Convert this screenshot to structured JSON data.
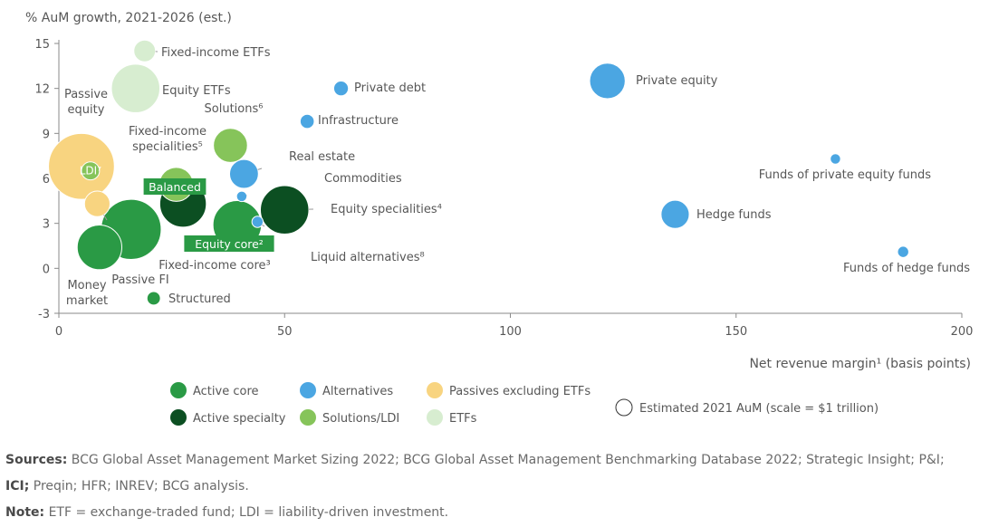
{
  "chart_data": {
    "type": "scatter",
    "title": "",
    "ylabel": "% AuM growth, 2021-2026 (est.)",
    "xlabel": "Net revenue margin¹ (basis points)",
    "xlim": [
      0,
      200
    ],
    "ylim": [
      -3,
      15
    ],
    "x_ticks": [
      "0",
      "50",
      "100",
      "150",
      "200"
    ],
    "y_ticks": [
      "-3",
      "0",
      "3",
      "6",
      "9",
      "12",
      "15"
    ],
    "grid": false,
    "legend_position": "bottom",
    "categories": [
      {
        "key": "active_core",
        "name": "Active core",
        "color": "#2a9a45"
      },
      {
        "key": "active_specialty",
        "name": "Active specialty",
        "color": "#0c4f22"
      },
      {
        "key": "alternatives",
        "name": "Alternatives",
        "color": "#4ba6e2"
      },
      {
        "key": "solutions_ldi",
        "name": "Solutions/LDI",
        "color": "#86c45a"
      },
      {
        "key": "passives_excl_etfs",
        "name": "Passives excluding ETFs",
        "color": "#f8d480"
      },
      {
        "key": "etfs",
        "name": "ETFs",
        "color": "#d7edd0"
      }
    ],
    "size_legend": "Estimated 2021 AuM (scale = $1 trillion)",
    "points": [
      {
        "label": "Fixed-income ETFs",
        "category": "etfs",
        "x": 19,
        "y": 14.5,
        "aum": 1.3
      },
      {
        "label": "Equity ETFs",
        "category": "etfs",
        "x": 17,
        "y": 12,
        "aum": 6.5
      },
      {
        "label": "Passive equity",
        "category": "passives_excl_etfs",
        "x": 5,
        "y": 6.8,
        "aum": 12
      },
      {
        "label": "LDI⁷",
        "category": "solutions_ldi",
        "x": 7,
        "y": 6.5,
        "aum": 0.9
      },
      {
        "label": "Fixed-income specialities⁵",
        "category": "solutions_ldi",
        "x": 26,
        "y": 5.6,
        "aum": 3.2
      },
      {
        "label": "Balanced",
        "category": "active_specialty",
        "x": 27.5,
        "y": 4.3,
        "aum": 6
      },
      {
        "label": "Solutions⁶",
        "category": "solutions_ldi",
        "x": 38,
        "y": 8.2,
        "aum": 3.2
      },
      {
        "label": "Real estate",
        "category": "alternatives",
        "x": 41,
        "y": 6.3,
        "aum": 2.3
      },
      {
        "label": "Commodities",
        "category": "alternatives",
        "x": 40.5,
        "y": 4.8,
        "aum": 0.3
      },
      {
        "label": "Equity specialities⁴",
        "category": "active_specialty",
        "x": 50,
        "y": 3.9,
        "aum": 6.5
      },
      {
        "label": "Liquid alternatives⁸",
        "category": "alternatives",
        "x": 44,
        "y": 3.1,
        "aum": 0.35
      },
      {
        "label": "Equity core²",
        "category": "active_core",
        "x": 39.5,
        "y": 2.9,
        "aum": 6.5
      },
      {
        "label": "Fixed-income core³",
        "category": "active_core",
        "x": 16,
        "y": 2.6,
        "aum": 10
      },
      {
        "label": "Passive FI",
        "category": "passives_excl_etfs",
        "x": 8.5,
        "y": 4.3,
        "aum": 1.8
      },
      {
        "label": "Money market",
        "category": "active_core",
        "x": 9,
        "y": 1.4,
        "aum": 5.5
      },
      {
        "label": "Structured",
        "category": "active_core",
        "x": 21,
        "y": -2,
        "aum": 0.5
      },
      {
        "label": "Private debt",
        "category": "alternatives",
        "x": 62.5,
        "y": 12,
        "aum": 0.6
      },
      {
        "label": "Infrastructure",
        "category": "alternatives",
        "x": 55,
        "y": 9.8,
        "aum": 0.55
      },
      {
        "label": "Private equity",
        "category": "alternatives",
        "x": 121.5,
        "y": 12.5,
        "aum": 3.5
      },
      {
        "label": "Funds of private equity funds",
        "category": "alternatives",
        "x": 172,
        "y": 7.3,
        "aum": 0.3
      },
      {
        "label": "Hedge funds",
        "category": "alternatives",
        "x": 136.5,
        "y": 3.6,
        "aum": 2.2
      },
      {
        "label": "Funds of hedge funds",
        "category": "alternatives",
        "x": 187,
        "y": 1.1,
        "aum": 0.35
      }
    ]
  },
  "footnotes": {
    "sources_label": "Sources:",
    "sources_text_1": " BCG Global Asset Management Market Sizing 2022; BCG Global Asset Management Benchmarking Database 2022; Strategic Insight; P&I;",
    "ici_label": "ICI;",
    "sources_text_2": " Preqin; HFR; INREV; BCG analysis.",
    "note_label": "Note:",
    "note_text": " ETF = exchange-traded fund; LDI = liability-driven investment."
  }
}
